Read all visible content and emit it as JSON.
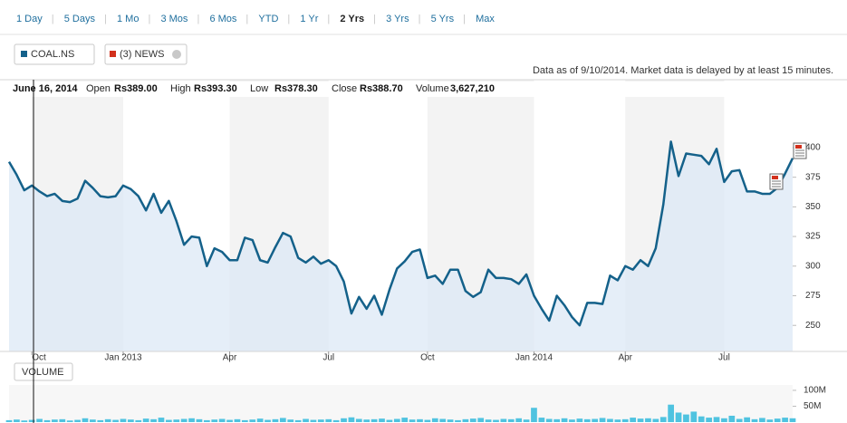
{
  "range_buttons": [
    "1 Day",
    "5 Days",
    "1 Mo",
    "3 Mos",
    "6 Mos",
    "YTD",
    "1 Yr",
    "2 Yrs",
    "3 Yrs",
    "5 Yrs",
    "Max"
  ],
  "selected_range": 7,
  "news_tag": "(3) NEWS",
  "notice": "Data as of 9/10/2014. Market data is delayed by at least 15 minutes.",
  "quote": {
    "date": "June 16, 2014",
    "fields": [
      {
        "label": "Open",
        "value": "Rs389.00"
      },
      {
        "label": "High",
        "value": "Rs393.30"
      },
      {
        "label": "Low",
        "value": "Rs378.30"
      },
      {
        "label": "Close",
        "value": "Rs388.70"
      },
      {
        "label": "Volume",
        "value": "3,627,210"
      }
    ]
  },
  "chart_data": [
    {
      "type": "line",
      "categories": [
        null,
        null,
        null,
        "Oct",
        null,
        null,
        null,
        null,
        null,
        null,
        null,
        null,
        null,
        null,
        null,
        "Jan 2013",
        null,
        null,
        null,
        null,
        null,
        null,
        null,
        null,
        null,
        null,
        null,
        null,
        null,
        "Apr",
        null,
        null,
        null,
        null,
        null,
        null,
        null,
        null,
        null,
        null,
        null,
        null,
        "Jul",
        null,
        null,
        null,
        null,
        null,
        null,
        null,
        null,
        null,
        null,
        null,
        null,
        "Oct",
        null,
        null,
        null,
        null,
        null,
        null,
        null,
        null,
        null,
        null,
        null,
        null,
        null,
        "Jan 2014",
        null,
        null,
        null,
        null,
        null,
        null,
        null,
        null,
        null,
        null,
        null,
        "Apr",
        null,
        null,
        null,
        null,
        null,
        null,
        null,
        null,
        null,
        null,
        null,
        null,
        "Jul",
        null,
        null,
        null,
        null,
        null,
        null,
        null,
        null,
        null
      ],
      "series": [
        {
          "name": "COAL.NS",
          "color": "#14618a",
          "fill": "#dce8f6",
          "values": [
            388,
            377,
            364,
            368,
            363,
            359,
            361,
            355,
            354,
            357,
            372,
            366,
            359,
            358,
            359,
            368,
            365,
            359,
            347,
            361,
            345,
            355,
            338,
            318,
            325,
            324,
            300,
            315,
            312,
            305,
            305,
            324,
            322,
            305,
            303,
            316,
            328,
            325,
            307,
            303,
            308,
            302,
            305,
            300,
            287,
            260,
            274,
            264,
            275,
            259,
            280,
            298,
            304,
            312,
            314,
            290,
            292,
            285,
            297,
            297,
            279,
            274,
            278,
            297,
            290,
            290,
            289,
            285,
            293,
            275,
            264,
            254,
            275,
            267,
            257,
            250,
            269,
            269,
            268,
            292,
            288,
            300,
            297,
            305,
            300,
            315,
            352,
            405,
            376,
            395,
            394,
            393,
            386,
            399,
            371,
            380,
            381,
            363,
            363,
            361,
            361,
            366,
            378,
            391
          ]
        }
      ],
      "ylim": [
        228,
        442
      ],
      "yticks": [
        250,
        275,
        300,
        325,
        350,
        375,
        400
      ]
    },
    {
      "type": "bar",
      "title": "VOLUME",
      "color": "#4fc3e0",
      "values": [
        6,
        8,
        5,
        7,
        10,
        6,
        8,
        9,
        5,
        7,
        12,
        8,
        6,
        9,
        7,
        10,
        8,
        6,
        11,
        9,
        14,
        7,
        8,
        10,
        12,
        9,
        6,
        8,
        10,
        7,
        9,
        6,
        8,
        11,
        7,
        9,
        13,
        8,
        6,
        10,
        7,
        8,
        9,
        6,
        12,
        15,
        10,
        8,
        9,
        11,
        7,
        10,
        14,
        8,
        9,
        7,
        12,
        10,
        8,
        6,
        9,
        11,
        13,
        8,
        7,
        10,
        9,
        12,
        8,
        45,
        14,
        10,
        9,
        12,
        8,
        11,
        9,
        10,
        13,
        10,
        8,
        9,
        14,
        11,
        12,
        10,
        16,
        55,
        30,
        24,
        33,
        18,
        14,
        16,
        12,
        20,
        10,
        15,
        9,
        13,
        8,
        11,
        14,
        12
      ],
      "ylim": [
        0,
        117
      ],
      "yticks": [
        {
          "value": 50,
          "label": "50M"
        },
        {
          "value": 100,
          "label": "100M"
        }
      ]
    }
  ]
}
